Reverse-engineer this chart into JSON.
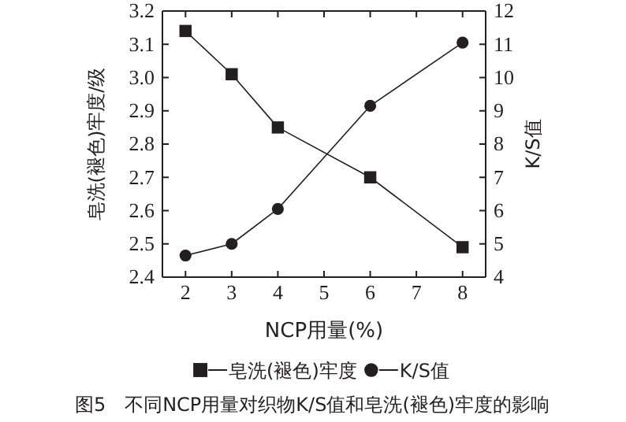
{
  "chart_data": {
    "type": "line",
    "x": [
      2,
      3,
      4,
      6,
      8
    ],
    "xlabel": "NCP用量(%)",
    "ylabel": "皂洗(褪色)牢度/级",
    "y2label": "K/S值",
    "xlim": [
      1.5,
      8.5
    ],
    "xticks": [
      2,
      3,
      4,
      5,
      6,
      7,
      8
    ],
    "ylim": [
      2.4,
      3.2
    ],
    "yticks": [
      {
        "value": 2.4,
        "label": "2.4"
      },
      {
        "value": 2.5,
        "label": "2.5"
      },
      {
        "value": 2.6,
        "label": "2.6"
      },
      {
        "value": 2.7,
        "label": "2.7"
      },
      {
        "value": 2.8,
        "label": "2.8"
      },
      {
        "value": 2.9,
        "label": "2.9"
      },
      {
        "value": 3.0,
        "label": "3.0"
      },
      {
        "value": 3.1,
        "label": "3.1"
      },
      {
        "value": 3.2,
        "label": "3.2"
      }
    ],
    "y2lim": [
      4,
      12
    ],
    "y2ticks": [
      4,
      5,
      6,
      7,
      8,
      9,
      10,
      11,
      12
    ],
    "series": [
      {
        "name": "皂洗(褪色)牢度",
        "color": "#231f20",
        "marker": "square",
        "values": [
          3.14,
          3.01,
          2.85,
          2.7,
          2.49
        ]
      },
      {
        "name": "K/S值",
        "color": "#231f20",
        "marker": "circle",
        "axis": "y2",
        "values": [
          4.65,
          5.0,
          6.05,
          9.15,
          11.05
        ]
      }
    ],
    "legend": "bottom",
    "grid": false,
    "line_style": "solid",
    "annotations": [
      "图5　不同NCP用量对织物K/S值和皂洗(褪色)牢度的影响"
    ]
  }
}
